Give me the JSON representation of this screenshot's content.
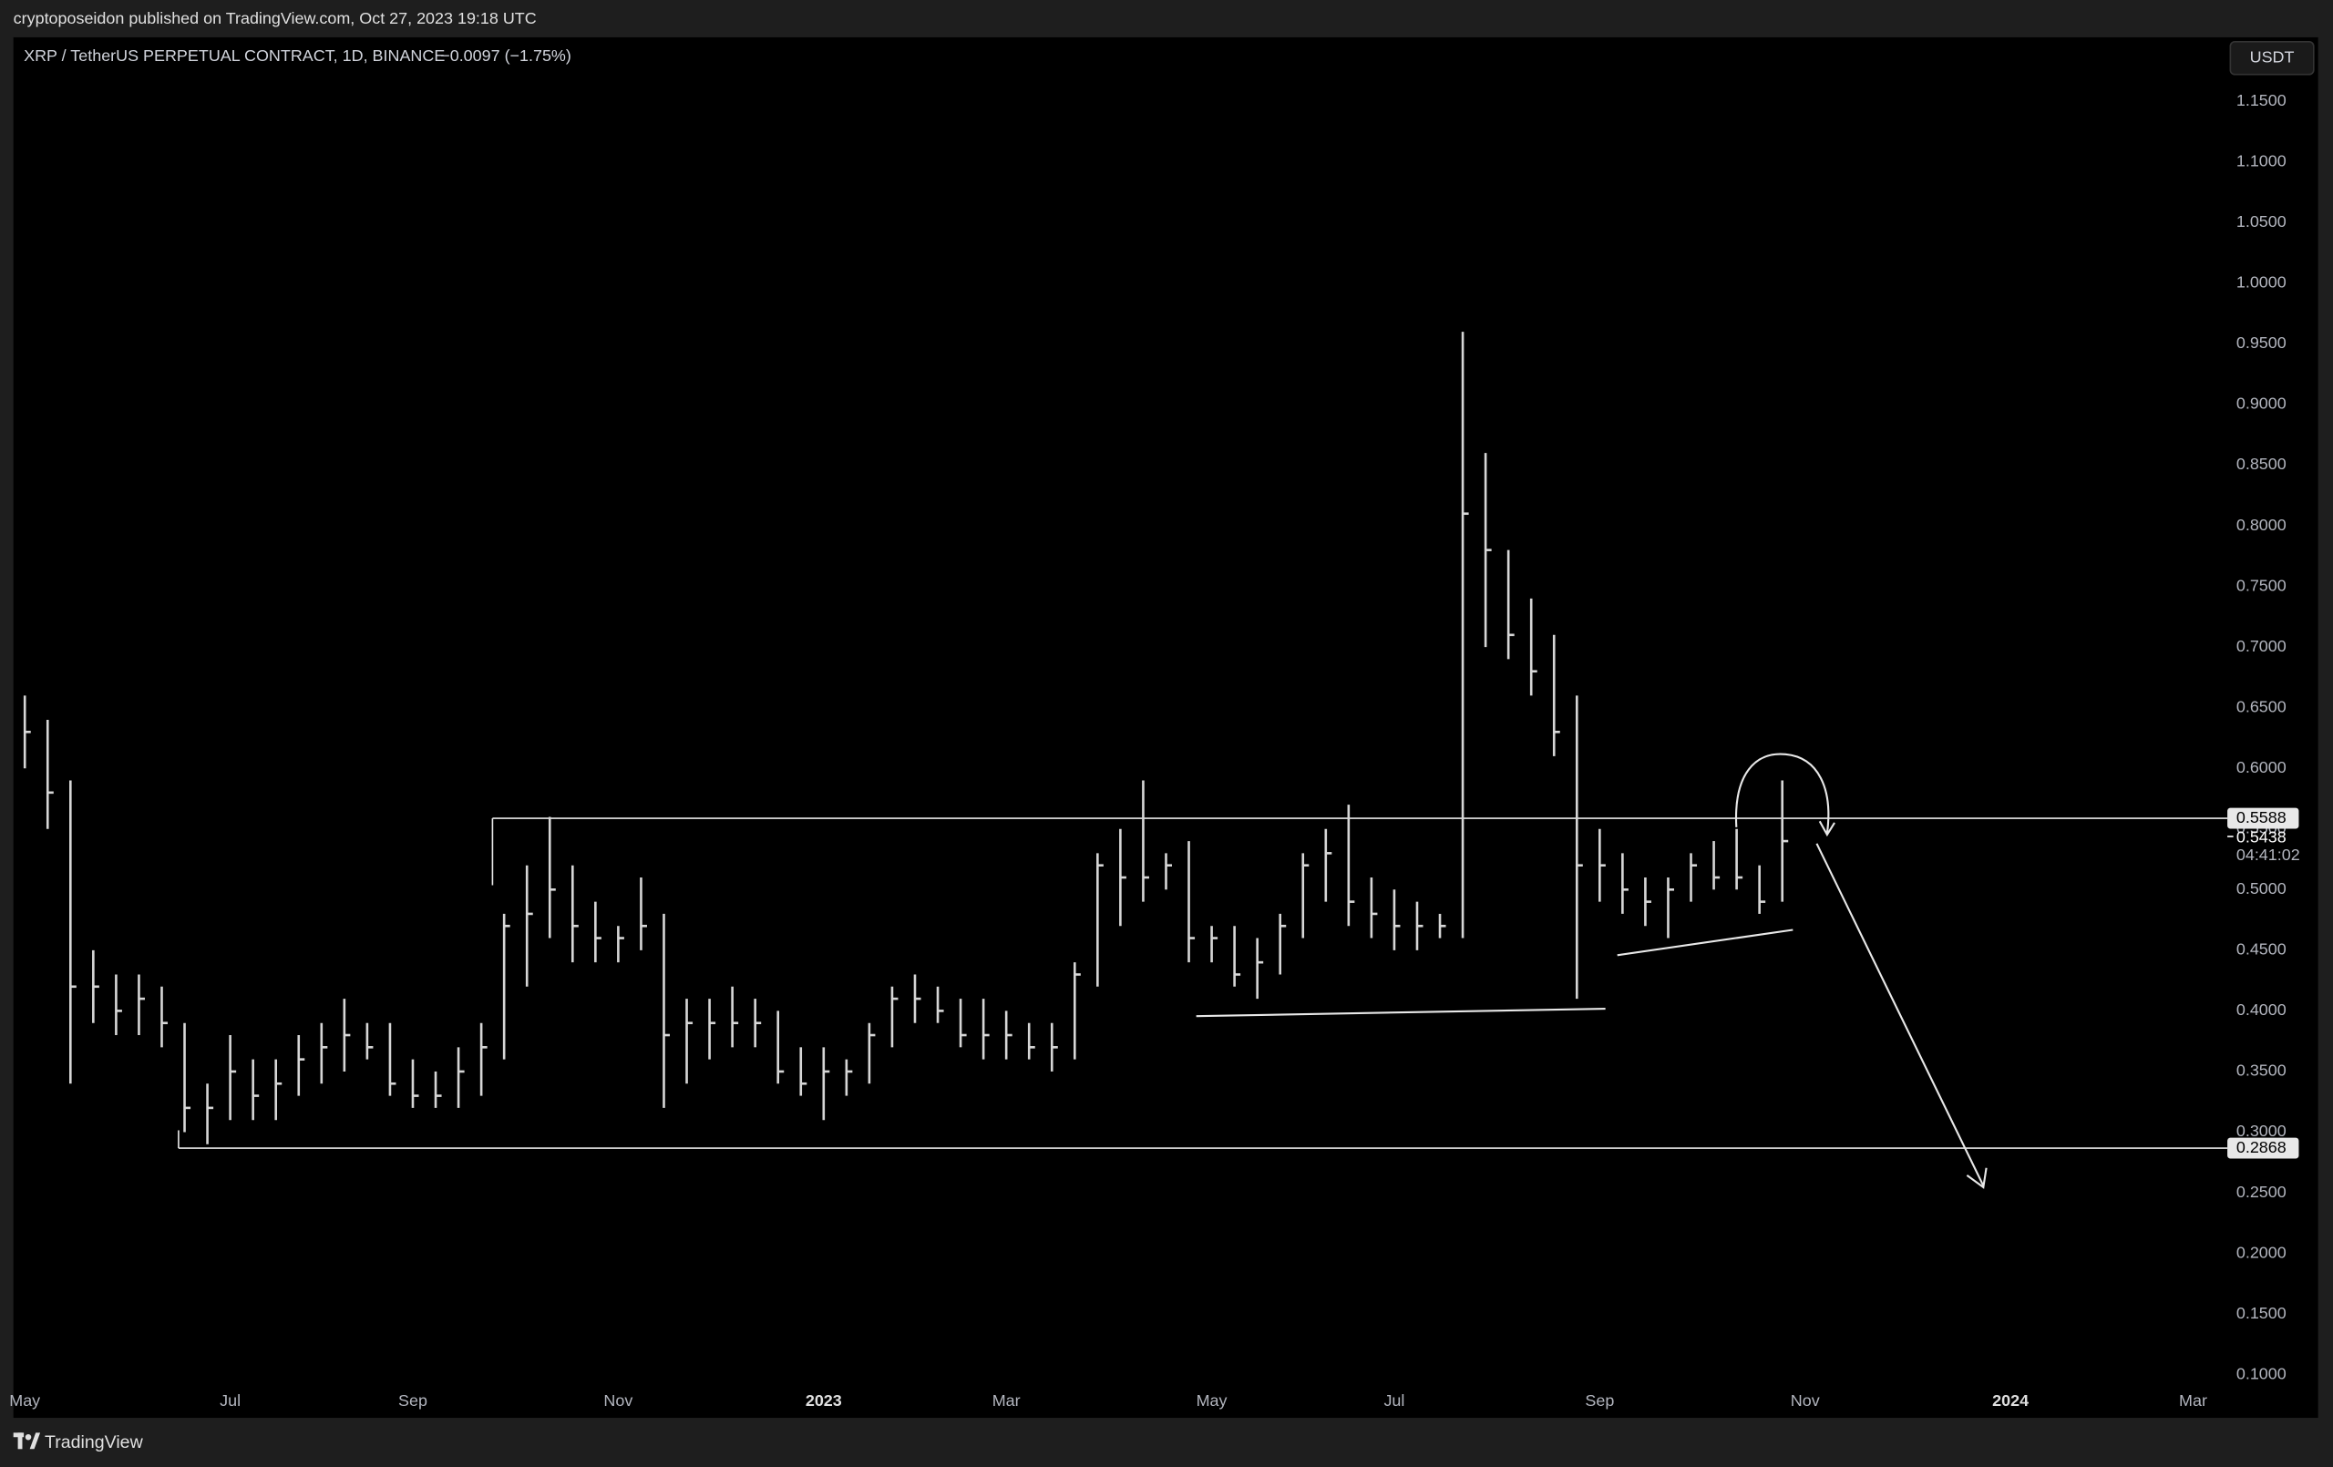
{
  "header": {
    "text": "cryptoposeidon published on TradingView.com, Oct 27, 2023 19:18 UTC"
  },
  "footer": {
    "brand": "TradingView"
  },
  "chart_data": {
    "type": "candlestick",
    "title": "XRP / TetherUS PERPETUAL CONTRACT, 1D, BINANCE",
    "change_label": "−0.0097 (−1.75%)",
    "currency": "USDT",
    "color": "#d6d6d6",
    "categories": [
      "May",
      null,
      null,
      null,
      null,
      null,
      null,
      null,
      null,
      "Jul",
      null,
      null,
      null,
      null,
      null,
      null,
      null,
      "Sep",
      null,
      null,
      null,
      null,
      null,
      null,
      null,
      null,
      "Nov",
      null,
      null,
      null,
      null,
      null,
      null,
      null,
      null,
      "2023",
      null,
      null,
      null,
      null,
      null,
      null,
      null,
      "Mar",
      null,
      null,
      null,
      null,
      null,
      null,
      null,
      null,
      "May",
      null,
      null,
      null,
      null,
      null,
      null,
      null,
      "Jul",
      null,
      null,
      null,
      null,
      null,
      null,
      null,
      null,
      "Sep",
      null,
      null,
      null,
      null,
      null,
      null,
      null,
      null,
      "Nov",
      null,
      null,
      null,
      null,
      null,
      null,
      null,
      null,
      "2024",
      null,
      null,
      null,
      null,
      null,
      null,
      null,
      "Mar",
      null
    ],
    "high": [
      0.66,
      0.64,
      0.59,
      0.45,
      0.43,
      0.43,
      0.42,
      0.39,
      0.34,
      0.38,
      0.36,
      0.36,
      0.38,
      0.39,
      0.41,
      0.39,
      0.39,
      0.36,
      0.35,
      0.37,
      0.39,
      0.48,
      0.52,
      0.56,
      0.52,
      0.49,
      0.47,
      0.51,
      0.48,
      0.41,
      0.41,
      0.42,
      0.41,
      0.4,
      0.37,
      0.37,
      0.36,
      0.39,
      0.42,
      0.43,
      0.42,
      0.41,
      0.41,
      0.4,
      0.39,
      0.39,
      0.44,
      0.53,
      0.55,
      0.59,
      0.53,
      0.54,
      0.47,
      0.47,
      0.46,
      0.48,
      0.53,
      0.55,
      0.57,
      0.51,
      0.5,
      0.49,
      0.48,
      0.96,
      0.86,
      0.78,
      0.74,
      0.71,
      0.66,
      0.55,
      0.53,
      0.51,
      0.51,
      0.53,
      0.54,
      0.55,
      0.52,
      0.59,
      null,
      null,
      null,
      null,
      null,
      null,
      null,
      null,
      null,
      null,
      null,
      null,
      null,
      null,
      null,
      null,
      null,
      null,
      null
    ],
    "low": [
      0.6,
      0.55,
      0.34,
      0.39,
      0.38,
      0.38,
      0.37,
      0.3,
      0.29,
      0.31,
      0.31,
      0.31,
      0.33,
      0.34,
      0.35,
      0.36,
      0.33,
      0.32,
      0.32,
      0.32,
      0.33,
      0.36,
      0.42,
      0.46,
      0.44,
      0.44,
      0.44,
      0.45,
      0.32,
      0.34,
      0.36,
      0.37,
      0.37,
      0.34,
      0.33,
      0.31,
      0.33,
      0.34,
      0.37,
      0.39,
      0.39,
      0.37,
      0.36,
      0.36,
      0.36,
      0.35,
      0.36,
      0.42,
      0.47,
      0.49,
      0.5,
      0.44,
      0.44,
      0.42,
      0.41,
      0.43,
      0.46,
      0.49,
      0.47,
      0.46,
      0.45,
      0.45,
      0.46,
      0.46,
      0.7,
      0.69,
      0.66,
      0.61,
      0.41,
      0.49,
      0.48,
      0.47,
      0.46,
      0.49,
      0.5,
      0.5,
      0.48,
      0.49,
      null,
      null,
      null,
      null,
      null,
      null,
      null,
      null,
      null,
      null,
      null,
      null,
      null,
      null,
      null,
      null,
      null,
      null,
      null
    ],
    "close": [
      0.63,
      0.58,
      0.42,
      0.42,
      0.4,
      0.41,
      0.39,
      0.32,
      0.32,
      0.35,
      0.33,
      0.34,
      0.36,
      0.37,
      0.38,
      0.37,
      0.34,
      0.33,
      0.33,
      0.35,
      0.37,
      0.47,
      0.48,
      0.5,
      0.47,
      0.46,
      0.46,
      0.47,
      0.38,
      0.39,
      0.39,
      0.39,
      0.39,
      0.35,
      0.34,
      0.35,
      0.35,
      0.38,
      0.41,
      0.41,
      0.4,
      0.38,
      0.38,
      0.38,
      0.37,
      0.37,
      0.43,
      0.52,
      0.51,
      0.51,
      0.52,
      0.46,
      0.46,
      0.43,
      0.44,
      0.47,
      0.52,
      0.53,
      0.49,
      0.48,
      0.47,
      0.47,
      0.47,
      0.81,
      0.78,
      0.71,
      0.68,
      0.63,
      0.52,
      0.52,
      0.5,
      0.49,
      0.5,
      0.52,
      0.51,
      0.51,
      0.49,
      0.54,
      null,
      null,
      null,
      null,
      null,
      null,
      null,
      null,
      null,
      null,
      null,
      null,
      null,
      null,
      null,
      null,
      null,
      null,
      null
    ],
    "ylim": [
      0.0902,
      1.2028
    ],
    "yticks": [
      {
        "value": 0.1,
        "label": "0.1000"
      },
      {
        "value": 0.15,
        "label": "0.1500"
      },
      {
        "value": 0.2,
        "label": "0.2000"
      },
      {
        "value": 0.25,
        "label": "0.2500"
      },
      {
        "value": 0.3,
        "label": "0.3000"
      },
      {
        "value": 0.35,
        "label": "0.3500"
      },
      {
        "value": 0.4,
        "label": "0.4000"
      },
      {
        "value": 0.45,
        "label": "0.4500"
      },
      {
        "value": 0.5,
        "label": "0.5000"
      },
      {
        "value": 0.55,
        "label": "0.5500"
      },
      {
        "value": 0.6,
        "label": "0.6000"
      },
      {
        "value": 0.65,
        "label": "0.6500"
      },
      {
        "value": 0.7,
        "label": "0.7000"
      },
      {
        "value": 0.75,
        "label": "0.7500"
      },
      {
        "value": 0.8,
        "label": "0.8000"
      },
      {
        "value": 0.85,
        "label": "0.8500"
      },
      {
        "value": 0.9,
        "label": "0.9000"
      },
      {
        "value": 0.95,
        "label": "0.9500"
      },
      {
        "value": 1.0,
        "label": "1.0000"
      },
      {
        "value": 1.05,
        "label": "1.0500"
      },
      {
        "value": 1.1,
        "label": "1.1000"
      },
      {
        "value": 1.15,
        "label": "1.1500"
      }
    ],
    "levels": [
      {
        "value": 0.5588,
        "label": "0.5588"
      },
      {
        "value": 0.2868,
        "label": "0.2868"
      }
    ],
    "last_price": {
      "value": 0.5438,
      "label": "0.5438",
      "countdown": "04:41:02"
    }
  }
}
